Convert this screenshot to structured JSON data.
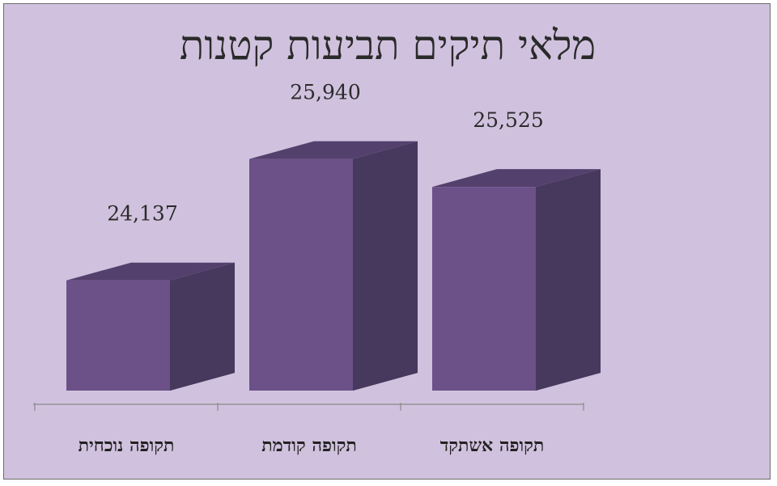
{
  "chart_data": {
    "type": "bar",
    "title": "מלאי תיקים תביעות קטנות",
    "categories": [
      "תקופה אשתקד",
      "תקופה קודמת",
      "תקופה נוכחית"
    ],
    "values": [
      25525,
      25940,
      24137
    ],
    "value_labels": [
      "25,525",
      "25,940",
      "24,137"
    ],
    "ylim": [
      22500,
      26800
    ],
    "three_d": true,
    "legend": "none",
    "grid": false,
    "colors": {
      "front": "#6b5188",
      "top": "#54406d",
      "side": "#47385d",
      "floor_shadow": "#3d2f4f",
      "background": "#d0c2de"
    }
  }
}
